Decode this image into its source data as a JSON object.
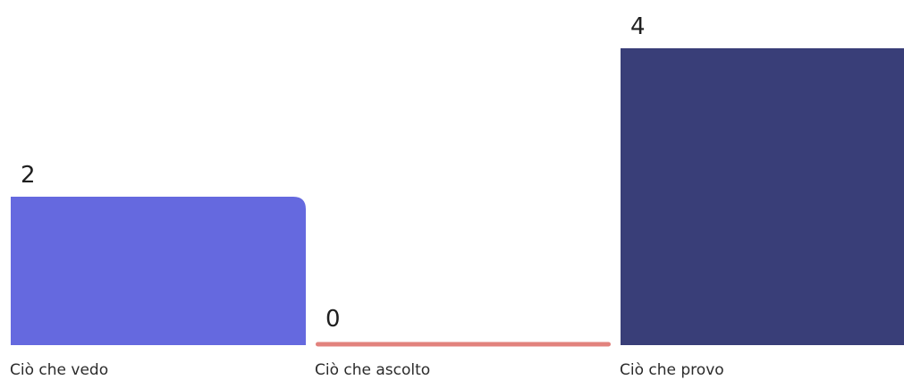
{
  "chart_data": {
    "type": "bar",
    "categories": [
      "Ciò che vedo",
      "Ciò che ascolto",
      "Ciò che provo"
    ],
    "values": [
      2,
      0,
      4
    ],
    "colors": [
      "#6569df",
      "#e2827d",
      "#393e78"
    ],
    "ylim": [
      0,
      4
    ],
    "grid": false,
    "legend": "none"
  }
}
